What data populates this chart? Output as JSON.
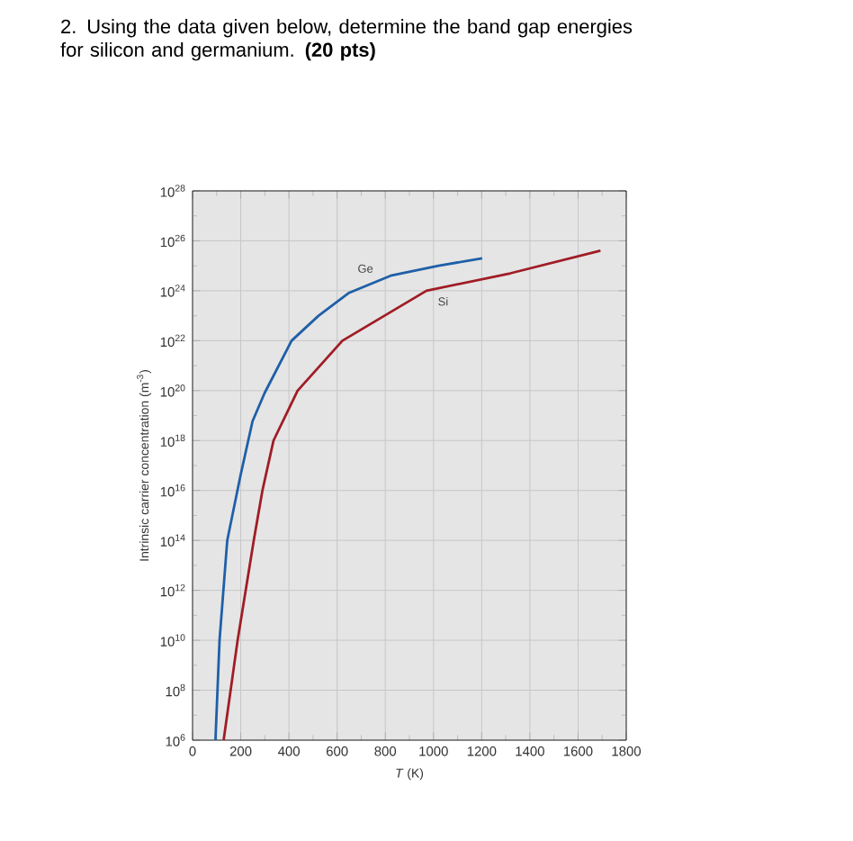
{
  "chart_data": {
    "type": "line",
    "title": "2. Using the data given below, determine the band gap energies for silicon and germanium. **(20 pts)**",
    "xlabel": "*T* (K)",
    "ylabel": "Intrinsic carrier concentration (m$^{-3}$)",
    "log": "y",
    "grid": true,
    "legend": false,
    "marker": "none",
    "line_style": "solid",
    "xlim": [
      0,
      1800
    ],
    "xticks": [
      0,
      200,
      400,
      600,
      800,
      1000,
      1200,
      1400,
      1600,
      1800
    ],
    "ylim": [
      1000000.0,
      1e+28
    ],
    "yticks": [
      {
        "value": 1000000.0,
        "label": "10$^{6}$"
      },
      {
        "value": 10000000.0,
        "label": null
      },
      {
        "value": 100000000.0,
        "label": "10$^{8}$"
      },
      {
        "value": 1000000000.0,
        "label": null
      },
      {
        "value": 10000000000.0,
        "label": "10$^{10}$"
      },
      {
        "value": 100000000000.0,
        "label": null
      },
      {
        "value": 1000000000000.0,
        "label": "10$^{12}$"
      },
      {
        "value": 10000000000000.0,
        "label": null
      },
      {
        "value": 100000000000000.0,
        "label": "10$^{14}$"
      },
      {
        "value": 1000000000000000.0,
        "label": null
      },
      {
        "value": 1e+16,
        "label": "10$^{16}$"
      },
      {
        "value": 1e+17,
        "label": null
      },
      {
        "value": 1e+18,
        "label": "10$^{18}$"
      },
      {
        "value": 1e+19,
        "label": null
      },
      {
        "value": 1e+20,
        "label": "10$^{20}$"
      },
      {
        "value": 1e+21,
        "label": null
      },
      {
        "value": 1e+22,
        "label": "10$^{22}$"
      },
      {
        "value": 1e+23,
        "label": null
      },
      {
        "value": 1e+24,
        "label": "10$^{24}$"
      },
      {
        "value": 1e+25,
        "label": null
      },
      {
        "value": 1e+26,
        "label": "10$^{26}$"
      },
      {
        "value": 1e+27,
        "label": null
      },
      {
        "value": 1e+28,
        "label": "10$^{28}$"
      }
    ],
    "series": [
      {
        "name": "Ge",
        "color": "#1f5fa8",
        "x": [
          95,
          112,
          144,
          199,
          249,
          299,
          411,
          523,
          647,
          822,
          1021,
          1202
        ],
        "values": [
          1000000.0,
          10000000000.0,
          100000000000000.0,
          4e+16,
          6e+18,
          8e+19,
          1e+22,
          1e+23,
          8e+23,
          4e+24,
          1e+25,
          2e+25
        ]
      },
      {
        "name": "Si",
        "color": "#a01c25",
        "x": [
          129,
          187,
          254,
          290,
          336,
          436,
          622,
          971,
          1319,
          1693
        ],
        "values": [
          1000000.0,
          10000000000.0,
          100000000000000.0,
          1e+16,
          1e+18,
          1e+20,
          1e+22,
          1e+24,
          5e+24,
          4e+25
        ]
      }
    ]
  }
}
